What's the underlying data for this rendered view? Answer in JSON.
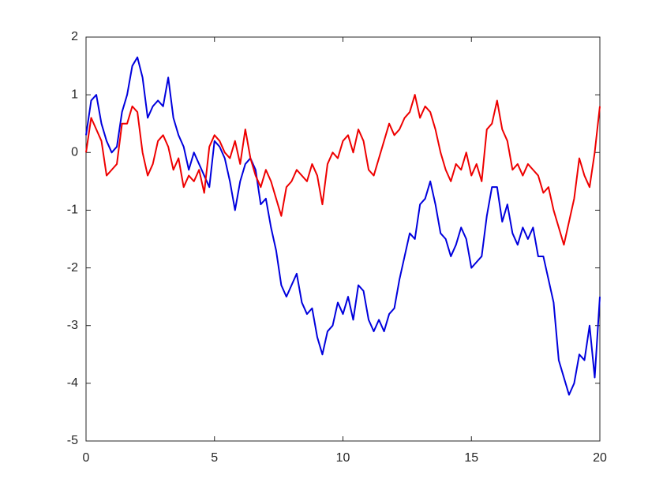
{
  "chart_data": {
    "type": "line",
    "x": [
      0,
      0.2,
      0.4,
      0.6,
      0.8,
      1,
      1.2,
      1.4,
      1.6,
      1.8,
      2,
      2.2,
      2.4,
      2.6,
      2.8,
      3,
      3.2,
      3.4,
      3.6,
      3.8,
      4,
      4.2,
      4.4,
      4.6,
      4.8,
      5,
      5.2,
      5.4,
      5.6,
      5.8,
      6,
      6.2,
      6.4,
      6.6,
      6.8,
      7,
      7.2,
      7.4,
      7.6,
      7.8,
      8,
      8.2,
      8.4,
      8.6,
      8.8,
      9,
      9.2,
      9.4,
      9.6,
      9.8,
      10,
      10.2,
      10.4,
      10.6,
      10.8,
      11,
      11.2,
      11.4,
      11.6,
      11.8,
      12,
      12.2,
      12.4,
      12.6,
      12.8,
      13,
      13.2,
      13.4,
      13.6,
      13.8,
      14,
      14.2,
      14.4,
      14.6,
      14.8,
      15,
      15.2,
      15.4,
      15.6,
      15.8,
      16,
      16.2,
      16.4,
      16.6,
      16.8,
      17,
      17.2,
      17.4,
      17.6,
      17.8,
      18,
      18.2,
      18.4,
      18.6,
      18.8,
      19,
      19.2,
      19.4,
      19.6,
      19.8,
      20
    ],
    "series": [
      {
        "color": "#0000dd",
        "values": [
          0.3,
          0.9,
          1.0,
          0.5,
          0.2,
          0.0,
          0.1,
          0.7,
          1.0,
          1.5,
          1.65,
          1.3,
          0.6,
          0.8,
          0.9,
          0.8,
          1.3,
          0.6,
          0.3,
          0.1,
          -0.3,
          0.0,
          -0.2,
          -0.4,
          -0.6,
          0.2,
          0.1,
          -0.1,
          -0.5,
          -1.0,
          -0.5,
          -0.2,
          -0.1,
          -0.3,
          -0.9,
          -0.8,
          -1.3,
          -1.7,
          -2.3,
          -2.5,
          -2.3,
          -2.1,
          -2.6,
          -2.8,
          -2.7,
          -3.2,
          -3.5,
          -3.1,
          -3.0,
          -2.6,
          -2.8,
          -2.5,
          -2.9,
          -2.3,
          -2.4,
          -2.9,
          -3.1,
          -2.9,
          -3.1,
          -2.8,
          -2.7,
          -2.2,
          -1.8,
          -1.4,
          -1.5,
          -0.9,
          -0.8,
          -0.5,
          -0.9,
          -1.4,
          -1.5,
          -1.8,
          -1.6,
          -1.3,
          -1.5,
          -2.0,
          -1.9,
          -1.8,
          -1.1,
          -0.6,
          -0.6,
          -1.2,
          -0.9,
          -1.4,
          -1.6,
          -1.3,
          -1.5,
          -1.3,
          -1.8,
          -1.8,
          -2.2,
          -2.6,
          -3.6,
          -3.9,
          -4.2,
          -4.0,
          -3.5,
          -3.6,
          -3.0,
          -3.9,
          -2.5
        ]
      },
      {
        "color": "#ee0000",
        "values": [
          0.0,
          0.6,
          0.4,
          0.2,
          -0.4,
          -0.3,
          -0.2,
          0.5,
          0.5,
          0.8,
          0.7,
          0.0,
          -0.4,
          -0.2,
          0.2,
          0.3,
          0.1,
          -0.3,
          -0.1,
          -0.6,
          -0.4,
          -0.5,
          -0.3,
          -0.7,
          0.1,
          0.3,
          0.2,
          0.0,
          -0.1,
          0.2,
          -0.2,
          0.4,
          -0.1,
          -0.4,
          -0.6,
          -0.3,
          -0.5,
          -0.8,
          -1.1,
          -0.6,
          -0.5,
          -0.3,
          -0.4,
          -0.5,
          -0.2,
          -0.4,
          -0.9,
          -0.2,
          0.0,
          -0.1,
          0.2,
          0.3,
          0.0,
          0.4,
          0.2,
          -0.3,
          -0.4,
          -0.1,
          0.2,
          0.5,
          0.3,
          0.4,
          0.6,
          0.7,
          1.0,
          0.6,
          0.8,
          0.7,
          0.4,
          0.0,
          -0.3,
          -0.5,
          -0.2,
          -0.3,
          0.0,
          -0.4,
          -0.2,
          -0.5,
          0.4,
          0.5,
          0.9,
          0.4,
          0.2,
          -0.3,
          -0.2,
          -0.4,
          -0.2,
          -0.3,
          -0.4,
          -0.7,
          -0.6,
          -1.0,
          -1.3,
          -1.6,
          -1.2,
          -0.8,
          -0.1,
          -0.4,
          -0.6,
          0.0,
          0.8
        ]
      }
    ],
    "xlim": [
      0,
      20
    ],
    "xticks": [
      0,
      5,
      10,
      15,
      20
    ],
    "ylim": [
      -5,
      2
    ],
    "yticks": [
      -5,
      -4,
      -3,
      -2,
      -1,
      0,
      1,
      2
    ]
  }
}
